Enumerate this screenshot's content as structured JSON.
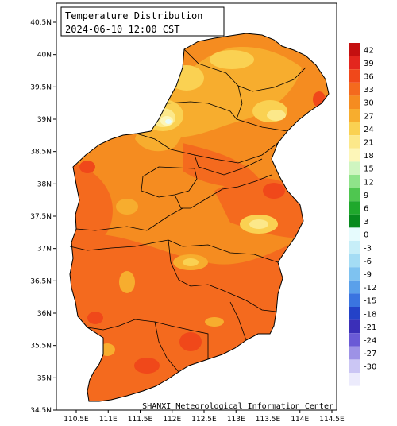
{
  "title": "Temperature Distribution",
  "timestamp": "2024-06-10 12:00 CST",
  "credit": "SHANXI Meteorological Information Center",
  "map": {
    "x_ticks": [
      "110.5E",
      "111E",
      "111.5E",
      "112E",
      "112.5E",
      "113E",
      "113.5E",
      "114E",
      "114.5E"
    ],
    "y_ticks": [
      "40.5N",
      "40N",
      "39.5N",
      "39N",
      "38.5N",
      "38N",
      "37.5N",
      "37N",
      "36.5N",
      "36N",
      "35.5N",
      "35N",
      "34.5N"
    ]
  },
  "legend": {
    "items": [
      {
        "label": "42",
        "color": "#c41010"
      },
      {
        "label": "39",
        "color": "#e3261e"
      },
      {
        "label": "36",
        "color": "#f0481a"
      },
      {
        "label": "33",
        "color": "#f46a1e"
      },
      {
        "label": "30",
        "color": "#f58c20"
      },
      {
        "label": "27",
        "color": "#f7ad2e"
      },
      {
        "label": "24",
        "color": "#fad152"
      },
      {
        "label": "21",
        "color": "#fce88a"
      },
      {
        "label": "18",
        "color": "#fdf6b8"
      },
      {
        "label": "15",
        "color": "#cff5c0"
      },
      {
        "label": "12",
        "color": "#8fe38a"
      },
      {
        "label": "9",
        "color": "#4fc650"
      },
      {
        "label": "6",
        "color": "#1fa82c"
      },
      {
        "label": "3",
        "color": "#078a1e"
      },
      {
        "label": "0",
        "color": "#e6fbfd"
      },
      {
        "label": "-3",
        "color": "#c7eef8"
      },
      {
        "label": "-6",
        "color": "#a4dcf4"
      },
      {
        "label": "-9",
        "color": "#7ec2f0"
      },
      {
        "label": "-12",
        "color": "#5aa0ea"
      },
      {
        "label": "-15",
        "color": "#3a74e0"
      },
      {
        "label": "-18",
        "color": "#2342c8"
      },
      {
        "label": "-21",
        "color": "#3b2fb8"
      },
      {
        "label": "-24",
        "color": "#6a5ad6"
      },
      {
        "label": "-27",
        "color": "#9d92e6"
      },
      {
        "label": "-30",
        "color": "#cbc6f4"
      },
      {
        "label": "",
        "color": "#ecebfc"
      }
    ]
  }
}
